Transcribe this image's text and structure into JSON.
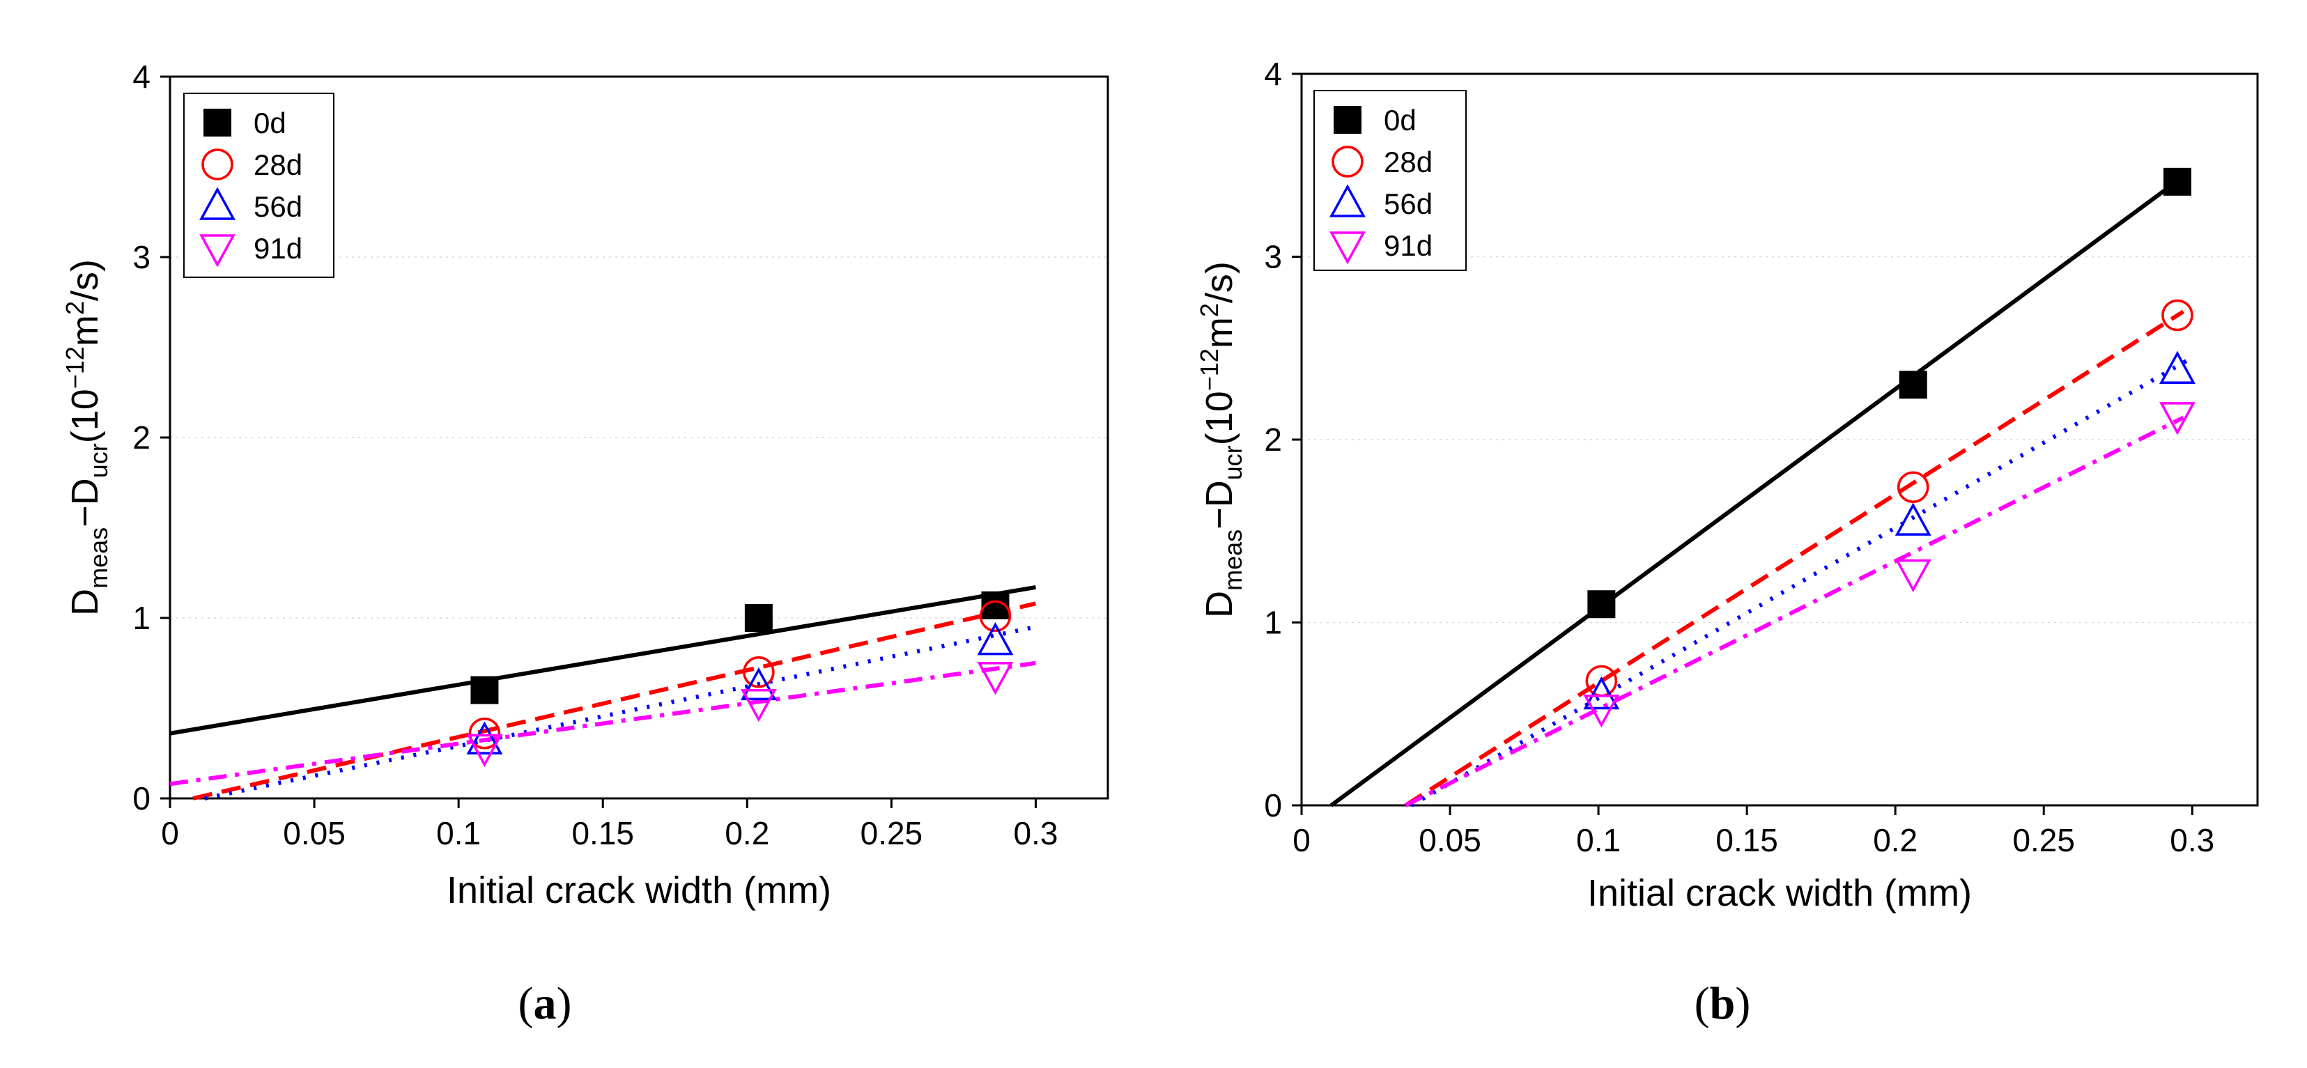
{
  "chart_data": [
    {
      "panel": "a",
      "type": "scatter",
      "panel_label_open": "(",
      "panel_label": "a",
      "panel_label_close": ")",
      "xlabel": "Initial crack width (mm)",
      "ylabel": {
        "main": "D",
        "sub1": "meas",
        "dash": "−D",
        "sub2": "ucr",
        "paren": "(10",
        "exp1": "−12",
        "unit": "m",
        "exp2": "2",
        "tail": "/s)"
      },
      "xlim": [
        0,
        0.325
      ],
      "ylim": [
        0,
        4
      ],
      "xticks": [
        0,
        0.05,
        0.1,
        0.15,
        0.2,
        0.25,
        0.3
      ],
      "xtick_labels": [
        "0",
        "0.05",
        "0.1",
        "0.15",
        "0.2",
        "0.25",
        "0.3"
      ],
      "yticks": [
        0,
        1,
        2,
        3,
        4
      ],
      "ytick_labels": [
        "0",
        "1",
        "2",
        "3",
        "4"
      ],
      "grid": "horizontal dotted",
      "legend_position": "top-left",
      "series": [
        {
          "name": "0d",
          "marker": "filled-square",
          "color": "#000000",
          "line": "solid",
          "x": [
            0.109,
            0.204,
            0.286
          ],
          "y": [
            0.6,
            1.0,
            1.07
          ],
          "fit": [
            [
              0,
              0.36
            ],
            [
              0.3,
              1.17
            ]
          ]
        },
        {
          "name": "28d",
          "marker": "open-circle",
          "color": "#ff0000",
          "line": "dashed",
          "x": [
            0.109,
            0.204,
            0.286
          ],
          "y": [
            0.36,
            0.7,
            1.01
          ],
          "fit": [
            [
              0.008,
              0.0
            ],
            [
              0.3,
              1.08
            ]
          ]
        },
        {
          "name": "56d",
          "marker": "open-triangle-up",
          "color": "#0000ff",
          "line": "dotted",
          "x": [
            0.109,
            0.204,
            0.286
          ],
          "y": [
            0.32,
            0.62,
            0.87
          ],
          "fit": [
            [
              0.012,
              0.0
            ],
            [
              0.3,
              0.95
            ]
          ]
        },
        {
          "name": "91d",
          "marker": "open-triangle-down",
          "color": "#ff00ff",
          "line": "dash-dot",
          "x": [
            0.109,
            0.204,
            0.286
          ],
          "y": [
            0.28,
            0.53,
            0.68
          ],
          "fit": [
            [
              0,
              0.08
            ],
            [
              0.3,
              0.75
            ]
          ]
        }
      ]
    },
    {
      "panel": "b",
      "type": "scatter",
      "panel_label_open": "(",
      "panel_label": "b",
      "panel_label_close": ")",
      "xlabel": "Initial crack width (mm)",
      "ylabel": {
        "main": "D",
        "sub1": "meas",
        "dash": "−D",
        "sub2": "ucr",
        "paren": "(10",
        "exp1": "−12",
        "unit": "m",
        "exp2": "2",
        "tail": "/s)"
      },
      "xlim": [
        0,
        0.322
      ],
      "ylim": [
        0,
        4
      ],
      "xticks": [
        0,
        0.05,
        0.1,
        0.15,
        0.2,
        0.25,
        0.3
      ],
      "xtick_labels": [
        "0",
        "0.05",
        "0.1",
        "0.15",
        "0.2",
        "0.25",
        "0.3"
      ],
      "yticks": [
        0,
        1,
        2,
        3,
        4
      ],
      "ytick_labels": [
        "0",
        "1",
        "2",
        "3",
        "4"
      ],
      "grid": "horizontal dotted",
      "legend_position": "top-left",
      "series": [
        {
          "name": "0d",
          "marker": "filled-square",
          "color": "#000000",
          "line": "solid",
          "x": [
            0.101,
            0.206,
            0.295
          ],
          "y": [
            1.1,
            2.3,
            3.41
          ],
          "fit": [
            [
              0.01,
              0.0
            ],
            [
              0.298,
              3.45
            ]
          ]
        },
        {
          "name": "28d",
          "marker": "open-circle",
          "color": "#ff0000",
          "line": "dashed",
          "x": [
            0.101,
            0.206,
            0.295
          ],
          "y": [
            0.68,
            1.74,
            2.68
          ],
          "fit": [
            [
              0.035,
              0.0
            ],
            [
              0.297,
              2.7
            ]
          ]
        },
        {
          "name": "56d",
          "marker": "open-triangle-up",
          "color": "#0000ff",
          "line": "dotted",
          "x": [
            0.101,
            0.206,
            0.295
          ],
          "y": [
            0.6,
            1.55,
            2.38
          ],
          "fit": [
            [
              0.037,
              0.0
            ],
            [
              0.298,
              2.43
            ]
          ]
        },
        {
          "name": "91d",
          "marker": "open-triangle-down",
          "color": "#ff00ff",
          "line": "dash-dot",
          "x": [
            0.101,
            0.206,
            0.295
          ],
          "y": [
            0.53,
            1.27,
            2.13
          ],
          "fit": [
            [
              0.035,
              0.0
            ],
            [
              0.297,
              2.12
            ]
          ]
        }
      ]
    }
  ]
}
